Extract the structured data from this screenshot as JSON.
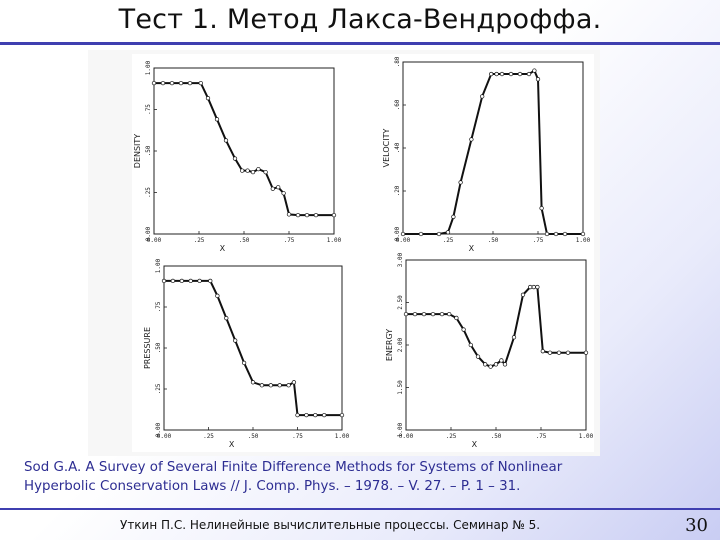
{
  "slide": {
    "title": "Тест 1. Метод Лакса-Вендроффа.",
    "caption_line1": "Sod G.A. A Survey of Several Finite Difference Methods for Systems of Nonlinear",
    "caption_line2": "Hyperbolic Conservation Laws // J. Comp. Phys. – 1978. – V. 27. – P. 1 – 31.",
    "footer": "Уткин П.С. Нелинейные вычислительные процессы. Семинар № 5.",
    "page_number": "30",
    "accent_color": "#3f3fb0",
    "caption_color": "#2d2d92"
  },
  "chart_data": [
    {
      "type": "scatter",
      "ylabel": "DENSITY",
      "xlabel": "X",
      "xticks": [
        "0.00",
        ".25",
        ".50",
        ".75",
        "1.00"
      ],
      "yticks": [
        "1.00",
        ".75",
        ".50",
        ".25",
        "0.00"
      ],
      "xlim": [
        0,
        1
      ],
      "ylim": [
        0,
        1.1
      ],
      "series": [
        {
          "x": [
            0,
            0.05,
            0.1,
            0.15,
            0.2,
            0.26,
            0.3,
            0.35,
            0.4,
            0.45,
            0.49,
            0.52,
            0.55,
            0.58,
            0.62,
            0.66,
            0.69,
            0.72,
            0.75,
            0.8,
            0.85,
            0.9,
            1.0
          ],
          "y": [
            1.0,
            1.0,
            1.0,
            1.0,
            1.0,
            1.0,
            0.9,
            0.76,
            0.62,
            0.5,
            0.42,
            0.42,
            0.41,
            0.43,
            0.41,
            0.3,
            0.31,
            0.27,
            0.13,
            0.125,
            0.125,
            0.125,
            0.125
          ]
        }
      ]
    },
    {
      "type": "scatter",
      "ylabel": "VELOCITY",
      "xlabel": "X",
      "xticks": [
        "0.00",
        ".25",
        ".50",
        ".75",
        "1.00"
      ],
      "yticks": [
        ".80",
        ".60",
        ".40",
        ".20",
        "0.00"
      ],
      "xlim": [
        0,
        1
      ],
      "ylim": [
        0,
        1.0
      ],
      "series": [
        {
          "x": [
            0,
            0.1,
            0.2,
            0.25,
            0.28,
            0.32,
            0.38,
            0.44,
            0.49,
            0.52,
            0.55,
            0.6,
            0.65,
            0.7,
            0.73,
            0.75,
            0.77,
            0.8,
            0.85,
            0.9,
            1.0
          ],
          "y": [
            0.0,
            0.0,
            0.0,
            0.01,
            0.1,
            0.3,
            0.55,
            0.8,
            0.93,
            0.93,
            0.93,
            0.93,
            0.93,
            0.93,
            0.95,
            0.9,
            0.15,
            0.0,
            0.0,
            0.0,
            0.0
          ]
        }
      ]
    },
    {
      "type": "scatter",
      "ylabel": "PRESSURE",
      "xlabel": "X",
      "xticks": [
        "0.00",
        ".25",
        ".50",
        ".75",
        "1.00"
      ],
      "yticks": [
        "1.00",
        ".75",
        ".50",
        ".25",
        "0.00"
      ],
      "xlim": [
        0,
        1
      ],
      "ylim": [
        0,
        1.1
      ],
      "series": [
        {
          "x": [
            0,
            0.05,
            0.1,
            0.15,
            0.2,
            0.26,
            0.3,
            0.35,
            0.4,
            0.45,
            0.5,
            0.55,
            0.6,
            0.65,
            0.7,
            0.73,
            0.75,
            0.8,
            0.85,
            0.9,
            1.0
          ],
          "y": [
            1.0,
            1.0,
            1.0,
            1.0,
            1.0,
            1.0,
            0.9,
            0.75,
            0.6,
            0.45,
            0.32,
            0.3,
            0.3,
            0.3,
            0.3,
            0.32,
            0.1,
            0.1,
            0.1,
            0.1,
            0.1
          ]
        }
      ]
    },
    {
      "type": "scatter",
      "ylabel": "ENERGY",
      "xlabel": "X",
      "xticks": [
        "0.00",
        ".25",
        ".50",
        ".75",
        "1.00"
      ],
      "yticks": [
        "3.00",
        "2.50",
        "2.00",
        "1.50",
        "1.00"
      ],
      "xlim": [
        0,
        1
      ],
      "ylim": [
        1.0,
        3.2
      ],
      "series": [
        {
          "x": [
            0,
            0.05,
            0.1,
            0.15,
            0.2,
            0.24,
            0.28,
            0.32,
            0.36,
            0.4,
            0.44,
            0.47,
            0.5,
            0.53,
            0.55,
            0.6,
            0.65,
            0.69,
            0.71,
            0.73,
            0.76,
            0.8,
            0.85,
            0.9,
            1.0
          ],
          "y": [
            2.5,
            2.5,
            2.5,
            2.5,
            2.5,
            2.5,
            2.45,
            2.3,
            2.1,
            1.95,
            1.85,
            1.82,
            1.85,
            1.9,
            1.85,
            2.2,
            2.75,
            2.85,
            2.85,
            2.85,
            2.02,
            2.0,
            2.0,
            2.0,
            2.0
          ]
        }
      ]
    }
  ]
}
